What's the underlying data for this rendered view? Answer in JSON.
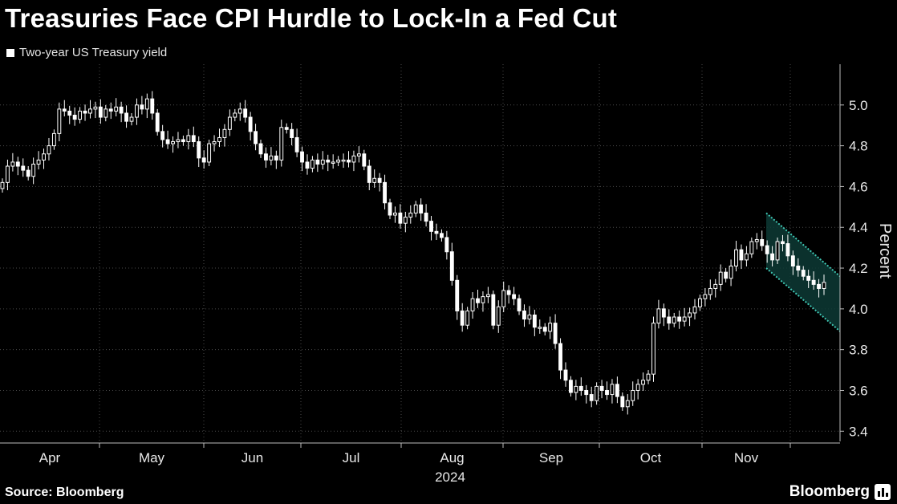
{
  "header": {
    "title": "Treasuries Face CPI Hurdle to Lock-In a Fed Cut",
    "legend_label": "Two-year US Treasury yield"
  },
  "footer": {
    "source": "Source: Bloomberg",
    "brand": "Bloomberg"
  },
  "chart_data": {
    "type": "candlestick",
    "title": "Treasuries Face CPI Hurdle to Lock-In a Fed Cut",
    "ylabel": "Percent",
    "xlabel": "2024",
    "ylim": [
      3.35,
      5.2
    ],
    "y_ticks": [
      3.4,
      3.6,
      3.8,
      4.0,
      4.2,
      4.4,
      4.6,
      4.8,
      5.0
    ],
    "x_ticks": [
      "Apr",
      "May",
      "Jun",
      "Jul",
      "Aug",
      "Sep",
      "Oct",
      "Nov"
    ],
    "year_label": "2024",
    "grid": true,
    "legend_position": "top-left",
    "colors": {
      "background": "#000000",
      "candle": "#ffffff",
      "channel": "#3fc7b4",
      "channel_fill": "#0d3a35",
      "grid": "#4a4a4a"
    },
    "series": [
      {
        "name": "Two-year US Treasury yield",
        "approx_close": [
          4.62,
          4.7,
          4.72,
          4.7,
          4.68,
          4.65,
          4.71,
          4.73,
          4.76,
          4.8,
          4.86,
          4.98,
          4.97,
          4.95,
          4.93,
          4.97,
          4.96,
          4.98,
          4.99,
          4.94,
          4.98,
          4.97,
          4.99,
          4.96,
          4.92,
          4.94,
          5.0,
          4.98,
          5.03,
          4.96,
          4.87,
          4.83,
          4.81,
          4.82,
          4.83,
          4.82,
          4.85,
          4.82,
          4.74,
          4.72,
          4.81,
          4.82,
          4.84,
          4.88,
          4.94,
          4.96,
          4.98,
          4.94,
          4.87,
          4.81,
          4.76,
          4.73,
          4.75,
          4.73,
          4.89,
          4.88,
          4.84,
          4.77,
          4.72,
          4.69,
          4.73,
          4.71,
          4.73,
          4.72,
          4.72,
          4.73,
          4.73,
          4.72,
          4.75,
          4.76,
          4.7,
          4.62,
          4.64,
          4.62,
          4.52,
          4.46,
          4.47,
          4.42,
          4.45,
          4.47,
          4.51,
          4.47,
          4.43,
          4.38,
          4.37,
          4.35,
          4.28,
          4.14,
          3.99,
          3.92,
          3.99,
          4.05,
          4.03,
          4.06,
          4.07,
          3.92,
          4.01,
          4.09,
          4.07,
          4.05,
          3.99,
          3.95,
          3.97,
          3.91,
          3.91,
          3.89,
          3.93,
          3.83,
          3.7,
          3.65,
          3.59,
          3.62,
          3.6,
          3.58,
          3.55,
          3.62,
          3.6,
          3.58,
          3.63,
          3.57,
          3.52,
          3.55,
          3.6,
          3.63,
          3.65,
          3.68,
          3.93,
          4.0,
          3.96,
          3.93,
          3.96,
          3.94,
          3.96,
          3.98,
          4.01,
          4.05,
          4.07,
          4.1,
          4.12,
          4.18,
          4.15,
          4.21,
          4.29,
          4.24,
          4.27,
          4.33,
          4.34,
          4.31,
          4.27,
          4.24,
          4.33,
          4.32,
          4.26,
          4.21,
          4.19,
          4.16,
          4.14,
          4.12,
          4.1,
          4.13
        ]
      }
    ],
    "annotation": {
      "type": "downward channel",
      "from": "early Nov",
      "to": "mid Dec",
      "upper": [
        4.47,
        4.16
      ],
      "lower": [
        4.2,
        3.89
      ]
    }
  }
}
